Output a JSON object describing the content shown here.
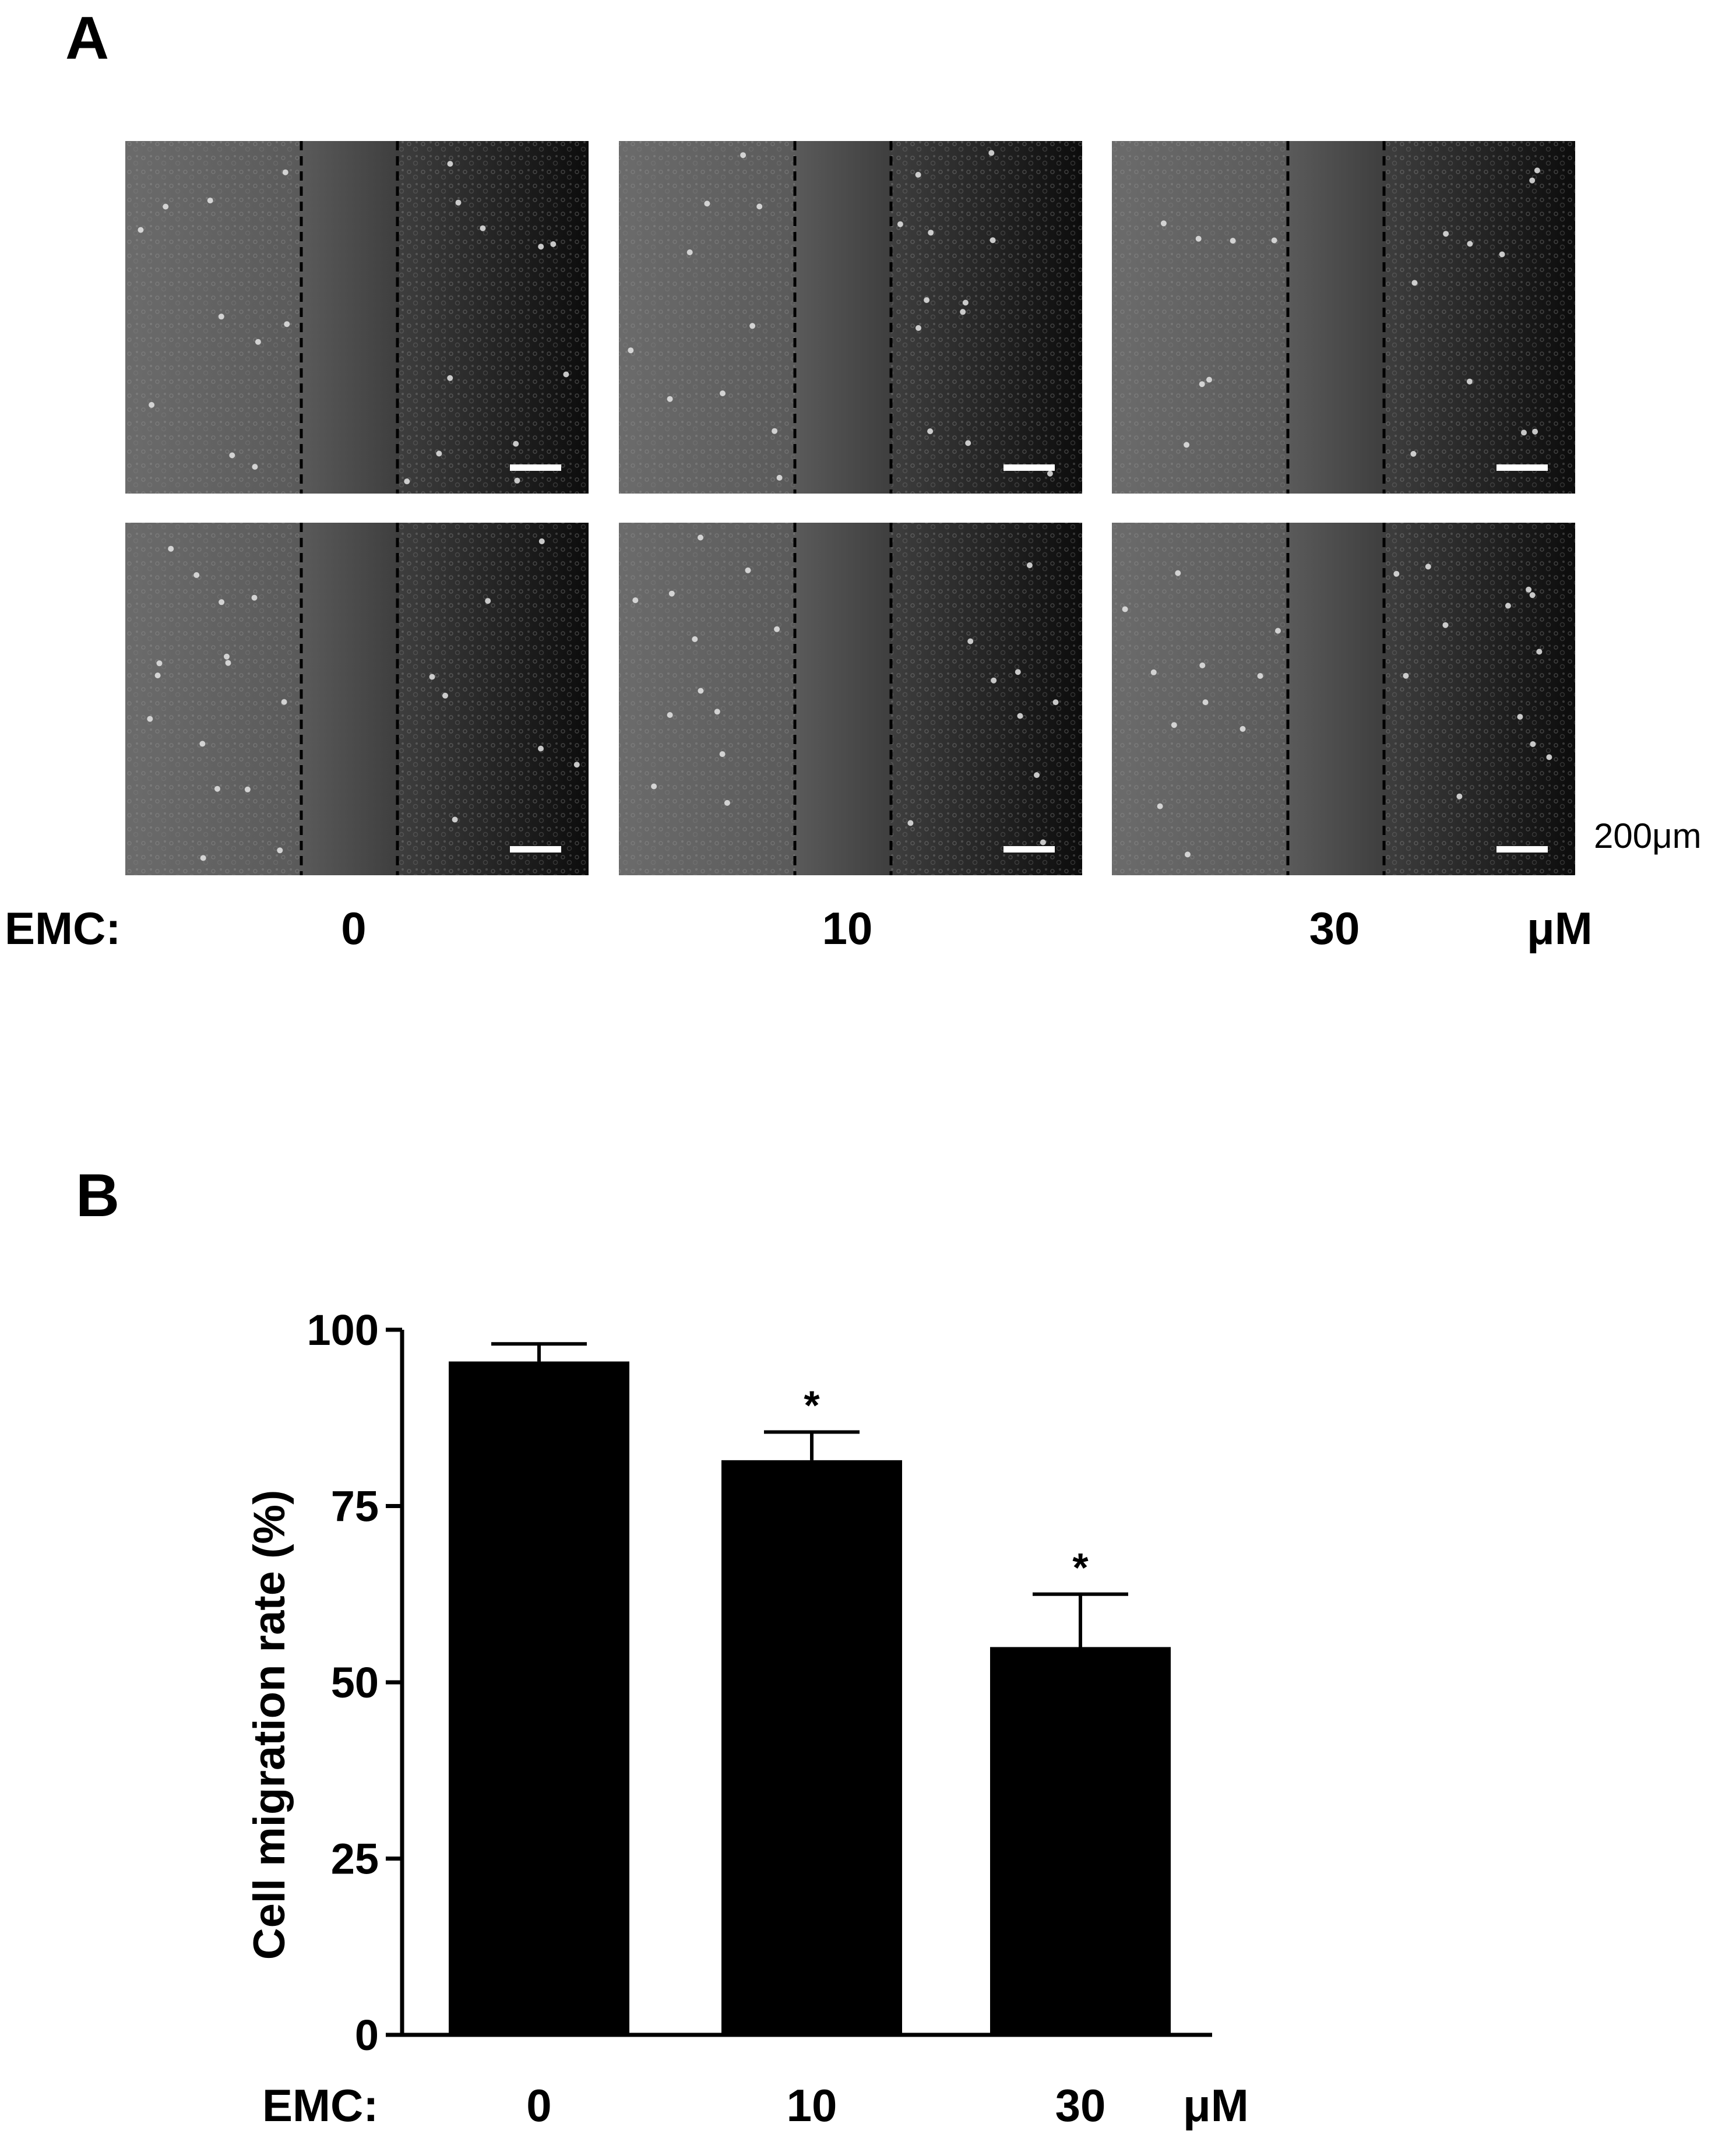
{
  "panel_labels": {
    "a": "A",
    "b": "B"
  },
  "micrographs": {
    "condition_label": "EMC:",
    "unit": "μM",
    "scale_bar_text": "200μm",
    "conditions": [
      "0",
      "10",
      "30"
    ],
    "rows": 2
  },
  "chart_data": {
    "type": "bar",
    "categories": [
      "0",
      "10",
      "30"
    ],
    "values": [
      95.5,
      81.5,
      55
    ],
    "errors": [
      2.5,
      4,
      7.5
    ],
    "significance": [
      "",
      "*",
      "*"
    ],
    "title": "",
    "xlabel": "EMC:",
    "x_unit": "μM",
    "ylabel": "Cell migration rate (%)",
    "ylim": [
      0,
      100
    ],
    "yticks": [
      0,
      25,
      50,
      75,
      100
    ],
    "bar_color": "#000000",
    "grid": false
  }
}
